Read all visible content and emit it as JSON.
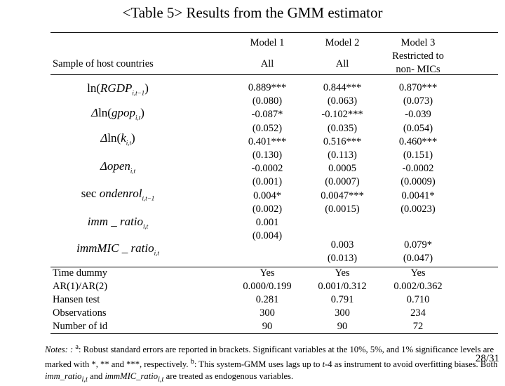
{
  "title": "<Table 5> Results from the GMM estimator",
  "header": {
    "models": [
      "Model 1",
      "Model 2",
      "Model 3"
    ],
    "sample_label": "Sample of host countries",
    "samples": [
      "All",
      "All",
      "Restricted to",
      "non- MICs"
    ]
  },
  "variables": [
    "ln(RGDP_{i,t-1})",
    "Δln(gpop_{i,t})",
    "Δln(k_{i,t})",
    "Δopen_{i,t}",
    "secondenrol_{i,t-1}",
    "imm_ratio_{i,t}",
    "immMIC_ratio_{i,t}"
  ],
  "coefficients": {
    "model1": [
      "0.889***",
      "(0.080)",
      "-0.087*",
      "(0.052)",
      "0.401***",
      "(0.130)",
      "-0.0002",
      "(0.001)",
      "0.004*",
      "(0.002)",
      "0.001",
      "(0.004)"
    ],
    "model2": [
      "0.844***",
      "(0.063)",
      "-0.102***",
      "(0.035)",
      "0.516***",
      "(0.113)",
      "0.0005",
      "(0.0007)",
      "0.0047***",
      "(0.0015)",
      "0.003",
      "(0.013)"
    ],
    "model3": [
      "0.870***",
      "(0.073)",
      "-0.039",
      "(0.054)",
      "0.460***",
      "(0.151)",
      "-0.0002",
      "(0.0009)",
      "0.0041*",
      "(0.0023)",
      "0.079*",
      "(0.047)"
    ]
  },
  "stats": {
    "labels": [
      "Time dummy",
      "AR(1)/AR(2)",
      "Hansen test",
      "Observations",
      "Number of id"
    ],
    "model1": [
      "Yes",
      "0.000/0.199",
      "0.281",
      "300",
      "90"
    ],
    "model2": [
      "Yes",
      "0.001/0.312",
      "0.791",
      "300",
      "90"
    ],
    "model3": [
      "Yes",
      "0.002/0.362",
      "0.710",
      "234",
      "72"
    ]
  },
  "notes": {
    "prefix": "Notes: : ",
    "a_mark": "a",
    "line1": ": Robust standard errors are reported in brackets. Significant variables at the 10%, 5%, and 1% significance levels are marked with *, ** and ***, respectively. ",
    "b_mark": "b",
    "line2": ": This system-GMM uses lags up to ",
    "t4": "t",
    "line2b": "-4 as instrument to avoid overfitting biases. Both ",
    "v1": "imm_ratio",
    "and": " and ",
    "v2": "immMIC_ratio",
    "sub": "i,t",
    "end": " are treated as endogenous variables."
  },
  "page_number": "28/31"
}
